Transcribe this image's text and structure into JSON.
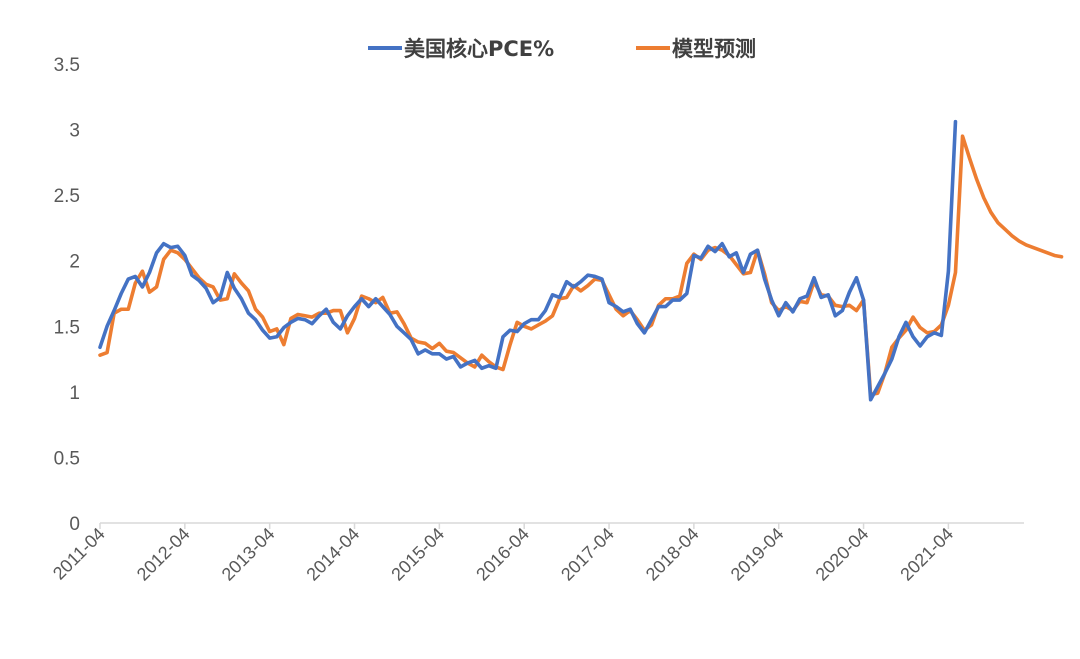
{
  "chart_data": {
    "type": "line",
    "ylim": [
      0,
      3.5
    ],
    "y_ticks": [
      "0",
      "0.5",
      "1",
      "1.5",
      "2",
      "2.5",
      "3",
      "3.5"
    ],
    "x_tick_labels": [
      "2011-04",
      "2012-04",
      "2013-04",
      "2014-04",
      "2015-04",
      "2016-04",
      "2017-04",
      "2018-04",
      "2019-04",
      "2020-04",
      "2021-04"
    ],
    "x_start": "2011-04",
    "grid": false,
    "legend_position": "top",
    "series": [
      {
        "name": "美国核心PCE%",
        "color": "#4472C4",
        "values": [
          1.34,
          1.5,
          1.62,
          1.75,
          1.86,
          1.88,
          1.8,
          1.91,
          2.06,
          2.13,
          2.1,
          2.11,
          2.04,
          1.89,
          1.85,
          1.79,
          1.68,
          1.72,
          1.91,
          1.79,
          1.71,
          1.6,
          1.55,
          1.47,
          1.41,
          1.42,
          1.49,
          1.53,
          1.56,
          1.55,
          1.52,
          1.58,
          1.63,
          1.53,
          1.48,
          1.58,
          1.65,
          1.71,
          1.65,
          1.71,
          1.65,
          1.59,
          1.5,
          1.45,
          1.4,
          1.29,
          1.32,
          1.29,
          1.29,
          1.25,
          1.27,
          1.19,
          1.22,
          1.24,
          1.18,
          1.2,
          1.18,
          1.42,
          1.47,
          1.46,
          1.52,
          1.55,
          1.55,
          1.62,
          1.74,
          1.72,
          1.84,
          1.8,
          1.84,
          1.89,
          1.88,
          1.86,
          1.68,
          1.65,
          1.61,
          1.63,
          1.52,
          1.45,
          1.55,
          1.65,
          1.65,
          1.7,
          1.7,
          1.75,
          2.04,
          2.02,
          2.11,
          2.07,
          2.13,
          2.03,
          2.06,
          1.91,
          2.05,
          2.08,
          1.86,
          1.7,
          1.58,
          1.68,
          1.61,
          1.71,
          1.73,
          1.87,
          1.72,
          1.74,
          1.58,
          1.62,
          1.76,
          1.87,
          1.7,
          0.94,
          1.04,
          1.14,
          1.25,
          1.42,
          1.53,
          1.42,
          1.35,
          1.42,
          1.45,
          1.43,
          1.92,
          3.06
        ]
      },
      {
        "name": "模型预测",
        "color": "#ED7D31",
        "values": [
          1.28,
          1.3,
          1.6,
          1.63,
          1.63,
          1.83,
          1.92,
          1.76,
          1.8,
          2.01,
          2.08,
          2.06,
          2.01,
          1.94,
          1.87,
          1.82,
          1.8,
          1.7,
          1.71,
          1.9,
          1.83,
          1.77,
          1.63,
          1.57,
          1.46,
          1.48,
          1.36,
          1.56,
          1.59,
          1.58,
          1.57,
          1.6,
          1.6,
          1.62,
          1.62,
          1.45,
          1.56,
          1.73,
          1.71,
          1.68,
          1.72,
          1.6,
          1.61,
          1.52,
          1.41,
          1.38,
          1.37,
          1.33,
          1.37,
          1.31,
          1.3,
          1.26,
          1.22,
          1.19,
          1.28,
          1.23,
          1.19,
          1.17,
          1.36,
          1.53,
          1.5,
          1.48,
          1.51,
          1.54,
          1.58,
          1.71,
          1.72,
          1.81,
          1.77,
          1.81,
          1.86,
          1.85,
          1.74,
          1.63,
          1.58,
          1.62,
          1.55,
          1.47,
          1.51,
          1.66,
          1.71,
          1.71,
          1.73,
          1.98,
          2.05,
          2.01,
          2.08,
          2.1,
          2.08,
          2.04,
          1.97,
          1.9,
          1.91,
          2.08,
          1.9,
          1.68,
          1.62,
          1.65,
          1.62,
          1.69,
          1.68,
          1.84,
          1.74,
          1.73,
          1.66,
          1.65,
          1.66,
          1.62,
          1.7,
          0.98,
          0.99,
          1.14,
          1.34,
          1.41,
          1.47,
          1.57,
          1.49,
          1.45,
          1.46,
          1.51,
          1.66,
          1.91,
          2.95,
          2.78,
          2.62,
          2.48,
          2.37,
          2.29,
          2.24,
          2.19,
          2.15,
          2.12,
          2.1,
          2.08,
          2.06,
          2.04,
          2.03
        ]
      }
    ]
  }
}
